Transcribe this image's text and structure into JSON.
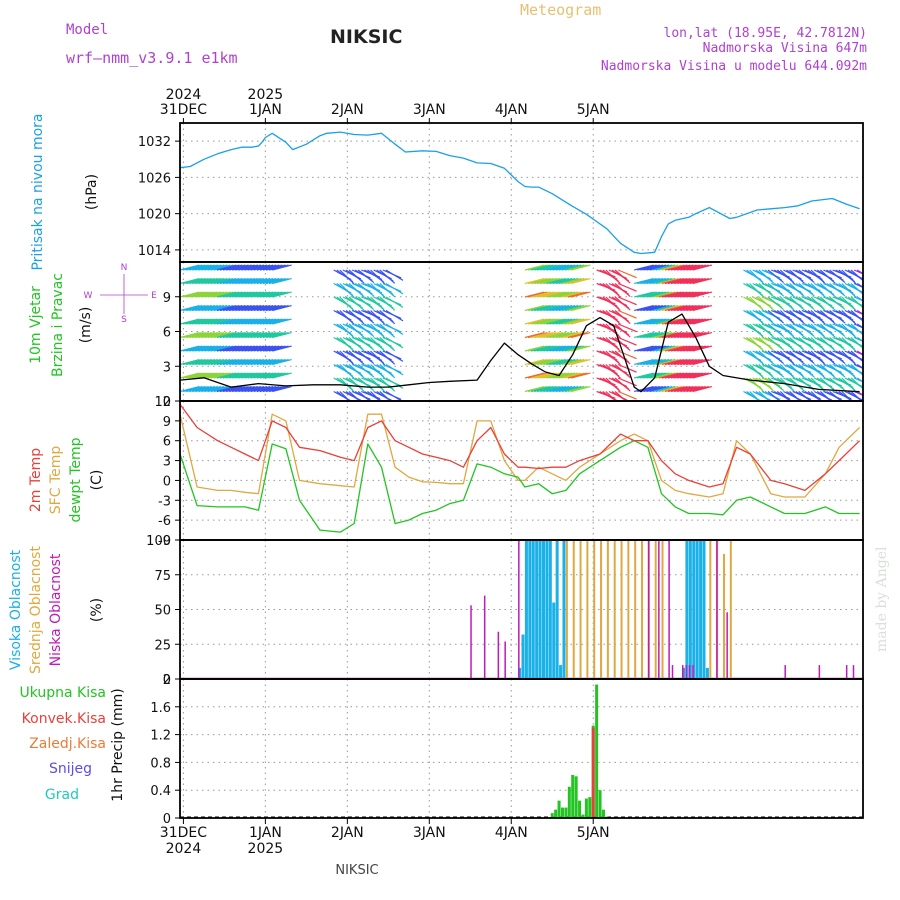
{
  "header": {
    "model_label": "Model",
    "model_name": "wrf—nmm_v3.9.1  e1km",
    "title": "NIKSIC",
    "meteogram": "Meteogram",
    "lonlat": "lon,lat (18.95E, 42.7812N)",
    "altitude": "Nadmorska Visina 647m",
    "model_altitude": "Nadmorska Visina u modelu 644.092m"
  },
  "footer": {
    "station": "NIKSIC",
    "credit": "made by Angel"
  },
  "colors": {
    "pressure": "#1aa0e8",
    "wind_speed": "#000000",
    "temp2m": "#e8403a",
    "sfc_temp": "#e0a840",
    "dewpoint": "#22c422",
    "high_cloud": "#1ab0e8",
    "mid_cloud": "#e0a840",
    "low_cloud": "#c01ab8",
    "total_precip": "#22c422",
    "conv_precip": "#e8403a",
    "title_purple": "#b040d0",
    "meteogram_orange": "#e8c070"
  },
  "chart_data": [
    {
      "type": "line",
      "panel": "pressure",
      "ylabel": [
        "Pritisak na nivou mora",
        "(hPa)"
      ],
      "yticks": [
        1014,
        1020,
        1026,
        1032
      ],
      "ylim": [
        1012,
        1035
      ],
      "x_unit": "hours since 2024-12-30 00:00",
      "x": [
        13,
        16,
        20,
        24,
        28,
        31,
        34,
        36,
        37,
        38,
        40,
        44,
        46,
        50,
        54,
        56,
        60,
        64,
        68,
        72,
        76,
        79,
        84,
        88,
        92,
        96,
        100,
        104,
        108,
        112,
        114,
        116,
        118,
        122,
        128,
        132,
        134,
        138,
        142,
        146,
        148,
        152,
        154,
        156,
        158,
        162,
        164,
        168,
        174,
        176,
        182,
        186,
        190,
        194,
        198,
        204,
        208,
        212
      ],
      "values": [
        1027.6,
        1027.8,
        1029,
        1029.9,
        1030.6,
        1031,
        1031,
        1031.2,
        1031.8,
        1032.6,
        1033.3,
        1031.8,
        1030.6,
        1031.5,
        1032.9,
        1033.3,
        1033.5,
        1033.1,
        1033,
        1033.3,
        1031.5,
        1030.2,
        1030.4,
        1030.3,
        1029.6,
        1029.2,
        1028.4,
        1028.3,
        1027.5,
        1025.3,
        1024.5,
        1024.4,
        1024.4,
        1023.3,
        1021.2,
        1019.9,
        1019.1,
        1017.5,
        1015.1,
        1013.6,
        1013.4,
        1013.6,
        1016.2,
        1018.3,
        1018.9,
        1019.4,
        1020,
        1021,
        1019.2,
        1019.4,
        1020.6,
        1020.8,
        1021,
        1021.3,
        1022.1,
        1022.5,
        1021.6,
        1020.8
      ]
    },
    {
      "type": "line",
      "panel": "wind",
      "ylabel": [
        "10m Vjetar",
        "Brzina i Pravac",
        "(m/s)"
      ],
      "compass": [
        "N",
        "S",
        "W",
        "E"
      ],
      "yticks": [
        0,
        3,
        6,
        9
      ],
      "ylim": [
        0,
        12
      ],
      "x": [
        13,
        20,
        28,
        36,
        44,
        52,
        60,
        68,
        74,
        80,
        86,
        92,
        100,
        104,
        108,
        112,
        116,
        120,
        124,
        128,
        132,
        136,
        140,
        144,
        146,
        148,
        152,
        156,
        160,
        164,
        168,
        172,
        180,
        190,
        200,
        212
      ],
      "values": [
        1.8,
        2.0,
        1.2,
        1.5,
        1.3,
        1.4,
        1.4,
        1.2,
        1.2,
        1.4,
        1.6,
        1.7,
        1.8,
        3.5,
        5.0,
        4.0,
        3.2,
        2.5,
        2.2,
        4.0,
        6.5,
        7.2,
        6.5,
        3.0,
        1.2,
        0.8,
        2.0,
        6.8,
        7.5,
        5.5,
        3.0,
        2.2,
        1.8,
        1.5,
        1.0,
        0.8
      ],
      "barb_intervals": [
        [
          13,
          40
        ],
        [
          58,
          74
        ],
        [
          114,
          128
        ],
        [
          135,
          142
        ],
        [
          146,
          164
        ],
        [
          178,
          212
        ]
      ]
    },
    {
      "type": "line",
      "panel": "temperature",
      "ylabel": [
        "2m Temp",
        "SFC Temp",
        "dewpt Temp",
        "(C)"
      ],
      "yticks": [
        -9,
        -6,
        -3,
        0,
        3,
        6,
        9,
        12
      ],
      "ylim": [
        -9,
        12
      ],
      "x": [
        13,
        18,
        24,
        28,
        32,
        36,
        40,
        44,
        48,
        54,
        60,
        64,
        68,
        72,
        76,
        80,
        84,
        88,
        92,
        96,
        100,
        104,
        108,
        112,
        114,
        118,
        122,
        126,
        130,
        136,
        142,
        146,
        150,
        154,
        158,
        162,
        168,
        172,
        176,
        180,
        186,
        190,
        196,
        202,
        206,
        212
      ],
      "series": [
        {
          "name": "2m Temp",
          "values": [
            11.5,
            8,
            6,
            5,
            4,
            3,
            9,
            8,
            5,
            4.5,
            3.5,
            3,
            8,
            9,
            6,
            5,
            4,
            3.5,
            3,
            2,
            6,
            8,
            4,
            2,
            2,
            1.8,
            2,
            2,
            3,
            4,
            7,
            6,
            6,
            3,
            1,
            0,
            -1,
            -0.5,
            5,
            4,
            0,
            -0.5,
            -1.5,
            1,
            3,
            6
          ]
        },
        {
          "name": "SFC Temp",
          "values": [
            10,
            -1,
            -1.5,
            -1.5,
            -1.8,
            -2,
            10,
            9,
            0,
            -0.5,
            -0.8,
            -1,
            10,
            10,
            2,
            0.5,
            -0.2,
            -0.3,
            -0.5,
            -0.5,
            9,
            9,
            3,
            0,
            0,
            2,
            1,
            0,
            2,
            4,
            6,
            7,
            6,
            0,
            -1.5,
            -2,
            -2.5,
            -2,
            6,
            4,
            -2,
            -2.5,
            -2.5,
            1,
            5,
            8
          ]
        },
        {
          "name": "dewpt Temp",
          "values": [
            4,
            -3.8,
            -4,
            -4,
            -4,
            -4.5,
            5.5,
            4.8,
            -3,
            -7.5,
            -7.8,
            -6.5,
            5.5,
            2,
            -6.5,
            -6,
            -5,
            -4.5,
            -3.5,
            -3,
            2.5,
            2,
            1,
            0.5,
            -1,
            -0.5,
            -2,
            -1.5,
            1,
            3,
            5,
            6,
            5,
            -2,
            -4,
            -5,
            -5,
            -5.2,
            -3,
            -2.5,
            -4,
            -5,
            -5,
            -4,
            -5,
            -5
          ]
        }
      ]
    },
    {
      "type": "bar",
      "panel": "clouds",
      "ylabel": [
        "Visoka Oblacnost",
        "Srednja Oblacnost",
        "Niska Oblacnost",
        "(%)"
      ],
      "yticks": [
        0,
        25,
        50,
        75,
        100
      ],
      "ylim": [
        0,
        100
      ],
      "series": [
        {
          "name": "Visoka Oblacnost",
          "x": [
            112,
            113,
            114,
            115,
            116,
            117,
            118,
            119,
            120,
            121,
            122,
            123,
            124,
            125,
            160,
            161,
            162,
            163,
            164,
            165,
            166,
            167
          ],
          "values": [
            8,
            32,
            100,
            100,
            100,
            100,
            100,
            100,
            100,
            100,
            55,
            100,
            10,
            100,
            8,
            100,
            100,
            100,
            100,
            100,
            100,
            8
          ]
        },
        {
          "name": "Srednja Oblacnost",
          "x": [
            126,
            128,
            130,
            132,
            134,
            136,
            138,
            140,
            142,
            144,
            146,
            148,
            150,
            152,
            154,
            168,
            170,
            172,
            174
          ],
          "values": [
            100,
            100,
            100,
            100,
            100,
            100,
            100,
            100,
            100,
            100,
            100,
            100,
            100,
            100,
            100,
            100,
            100,
            90,
            100
          ]
        },
        {
          "name": "Niska Oblacnost",
          "x": [
            98,
            102,
            106,
            108,
            112,
            150,
            153,
            156,
            157,
            160,
            161,
            162,
            163,
            170,
            173,
            190,
            200,
            208,
            210
          ],
          "values": [
            53,
            60,
            34,
            27,
            100,
            100,
            100,
            100,
            10,
            10,
            10,
            10,
            10,
            100,
            48,
            10,
            10,
            10,
            10
          ]
        }
      ]
    },
    {
      "type": "bar",
      "panel": "precipitation",
      "ylabel": [
        "1hr Precip (mm)"
      ],
      "legend": [
        "Ukupna Kisa",
        "Konvek.Kisa",
        "Zaledj.Kisa",
        "Snijeg",
        "Grad"
      ],
      "legend_colors": [
        "#22c422",
        "#e8403a",
        "#ee7a36",
        "#5a4ee8",
        "#20c8c0"
      ],
      "yticks": [
        0,
        0.4,
        0.8,
        1.2,
        1.6,
        2
      ],
      "ylim": [
        0,
        2
      ],
      "series": [
        {
          "name": "Ukupna Kisa",
          "x": [
            122,
            123,
            124,
            125,
            126,
            127,
            128,
            129,
            130,
            131,
            132,
            133,
            134,
            135,
            136,
            137,
            138
          ],
          "values": [
            0.07,
            0.12,
            0.25,
            0.15,
            0.15,
            0.45,
            0.62,
            0.6,
            0.25,
            0.05,
            0.28,
            0.3,
            1.33,
            1.92,
            0.4,
            0.12,
            0.02
          ]
        },
        {
          "name": "Konvek.Kisa",
          "x": [
            134
          ],
          "values": [
            1.3
          ]
        }
      ]
    }
  ],
  "time_axis": {
    "top": [
      {
        "hour": 14,
        "year": "2024",
        "date": "31DEC"
      },
      {
        "hour": 38,
        "year": "2025",
        "date": "1JAN"
      },
      {
        "hour": 62,
        "year": "",
        "date": "2JAN"
      },
      {
        "hour": 86,
        "year": "",
        "date": "3JAN"
      },
      {
        "hour": 110,
        "year": "",
        "date": "4JAN"
      },
      {
        "hour": 134,
        "year": "",
        "date": "5JAN"
      }
    ],
    "bottom": [
      {
        "hour": 14,
        "date": "31DEC",
        "year": "2024"
      },
      {
        "hour": 38,
        "date": "1JAN",
        "year": "2025"
      },
      {
        "hour": 62,
        "date": "2JAN",
        "year": ""
      },
      {
        "hour": 86,
        "date": "3JAN",
        "year": ""
      },
      {
        "hour": 110,
        "date": "4JAN",
        "year": ""
      },
      {
        "hour": 134,
        "date": "5JAN",
        "year": ""
      }
    ]
  }
}
